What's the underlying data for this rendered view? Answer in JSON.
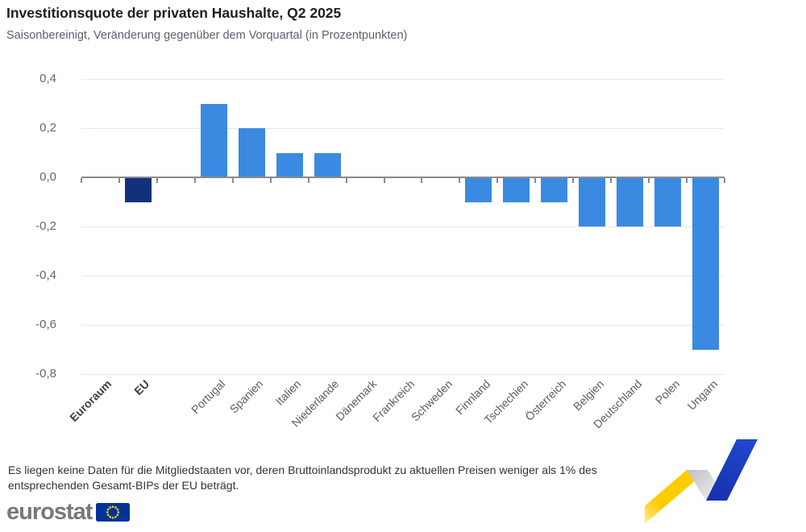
{
  "header": {
    "title": "Investitionsquote der privaten Haushalte, Q2 2025",
    "subtitle": "Saisonbereinigt, Veränderung gegenüber dem Vorquartal (in Prozentpunkten)"
  },
  "chart_data": {
    "type": "bar",
    "title": "Investitionsquote der privaten Haushalte, Q2 2025",
    "subtitle": "Saisonbereinigt, Veränderung gegenüber dem Vorquartal (in Prozentpunkten)",
    "unit": "Prozentpunkte, Veränderung gegenüber dem Vorquartal",
    "categories": [
      "Euroraum",
      "EU",
      "Portugal",
      "Spanien",
      "Italien",
      "Niederlande",
      "Dänemark",
      "Frankreich",
      "Schweden",
      "Finnland",
      "Tschechien",
      "Österreich",
      "Belgien",
      "Deutschland",
      "Polen",
      "Ungarn"
    ],
    "values": [
      0.0,
      -0.1,
      0.3,
      0.2,
      0.1,
      0.1,
      0.0,
      0.0,
      0.0,
      -0.1,
      -0.1,
      -0.1,
      -0.2,
      -0.2,
      -0.2,
      -0.7
    ],
    "aggregate_count": 2,
    "gap_after_index": 1,
    "ylim": [
      -0.8,
      0.4
    ],
    "grid": true,
    "legend": "none",
    "yticks": [
      {
        "v": 0.4,
        "label": "0,4"
      },
      {
        "v": 0.2,
        "label": "0,2"
      },
      {
        "v": 0.0,
        "label": "0,0"
      },
      {
        "v": -0.2,
        "label": "-0,2"
      },
      {
        "v": -0.4,
        "label": "-0,4"
      },
      {
        "v": -0.6,
        "label": "-0,6"
      },
      {
        "v": -0.8,
        "label": "-0,8"
      }
    ],
    "bar_color": "#3B8AE2",
    "aggregate_bar_color": "#12317D"
  },
  "footnote": "Es liegen keine Daten für die Mitgliedstaaten vor, deren Bruttoinlandsprodukt zu aktuellen Preisen weniger als 1% des entsprechenden Gesamt-BIPs der EU beträgt.",
  "logo": {
    "text": "eurostat"
  },
  "colors": {
    "grid": "#E3E9F5",
    "zero_axis": "#8A8A8A",
    "title": "#1A1E28",
    "subtitle": "#5A6270",
    "axis_labels": "#666666",
    "ribbon_yellow": "#FFCC00",
    "ribbon_gray": "#C0C2C6",
    "ribbon_blue": "#1C41C8",
    "flag_blue": "#003399",
    "flag_stars": "#FFCC00",
    "logo_text": "#76787A"
  }
}
